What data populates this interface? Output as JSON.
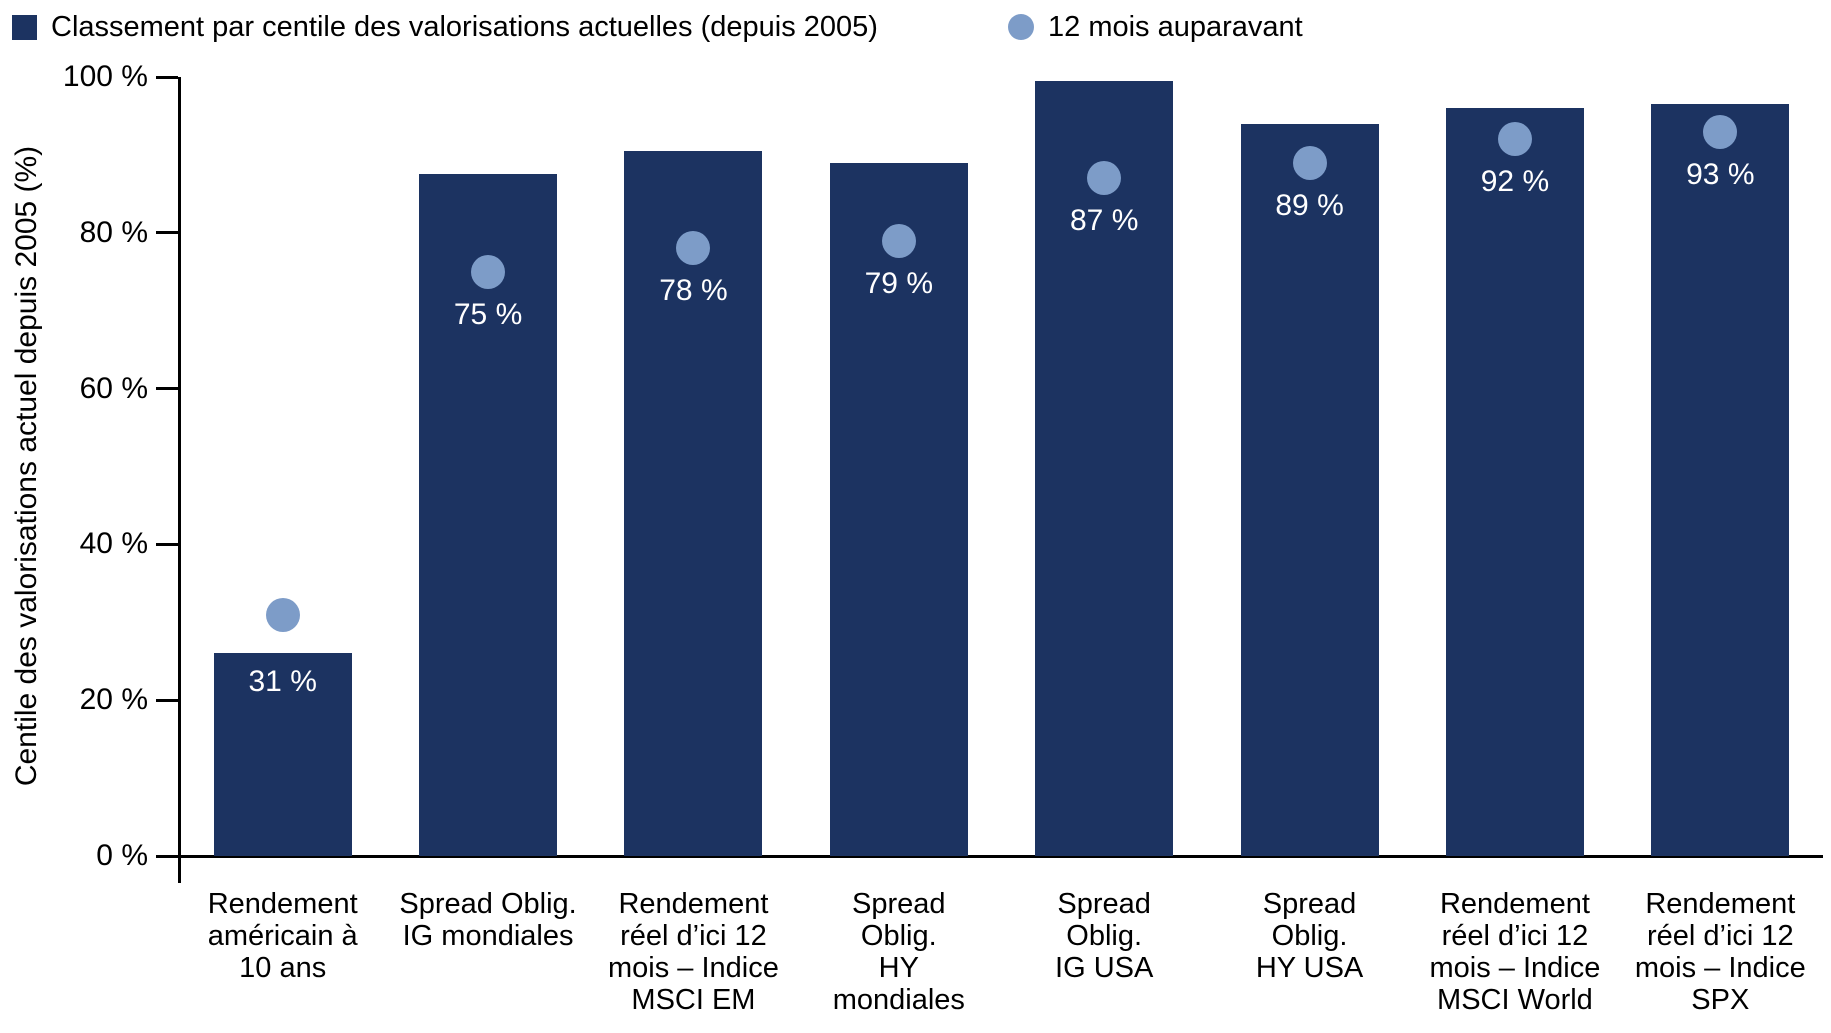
{
  "legend": {
    "items": [
      {
        "label": "Classement par centile des valorisations actuelles (depuis 2005)",
        "marker": "square",
        "color": "#1c3361"
      },
      {
        "label": "12 mois auparavant",
        "marker": "circle",
        "color": "#7d9cc8"
      }
    ]
  },
  "chart_data": {
    "type": "bar",
    "title": "",
    "xlabel": "",
    "ylabel": "Centile des valorisations actuel depuis 2005 (%)",
    "ylim": [
      0,
      100
    ],
    "yticks": [
      0,
      20,
      40,
      60,
      80,
      100
    ],
    "ytick_labels": [
      "0 %",
      "20 %",
      "40 %",
      "60 %",
      "80 %",
      "100 %"
    ],
    "grid": false,
    "legend_position": "top",
    "categories": [
      "Rendement\naméricain à\n10 ans",
      "Spread Oblig.\nIG mondiales",
      "Rendement\nréel d’ici 12\nmois – Indice\nMSCI EM",
      "Spread\nOblig.\nHY\nmondiales",
      "Spread\nOblig.\nIG USA",
      "Spread\nOblig.\nHY USA",
      "Rendement\nréel d’ici 12\nmois – Indice\nMSCI World",
      "Rendement\nréel d’ici 12\nmois – Indice\nSPX"
    ],
    "series": [
      {
        "name": "Classement par centile des valorisations actuelles (depuis 2005)",
        "type": "bar",
        "color": "#1c3361",
        "values": [
          26,
          87.5,
          90.5,
          89,
          99.5,
          94,
          96,
          96.5
        ]
      },
      {
        "name": "12 mois auparavant",
        "type": "scatter",
        "color": "#7d9cc8",
        "values": [
          31,
          75,
          78,
          79,
          87,
          89,
          92,
          93
        ],
        "data_labels": [
          "31 %",
          "75 %",
          "78 %",
          "79 %",
          "87 %",
          "89 %",
          "92 %",
          "93 %"
        ],
        "data_label_color": "#ffffff"
      }
    ]
  }
}
